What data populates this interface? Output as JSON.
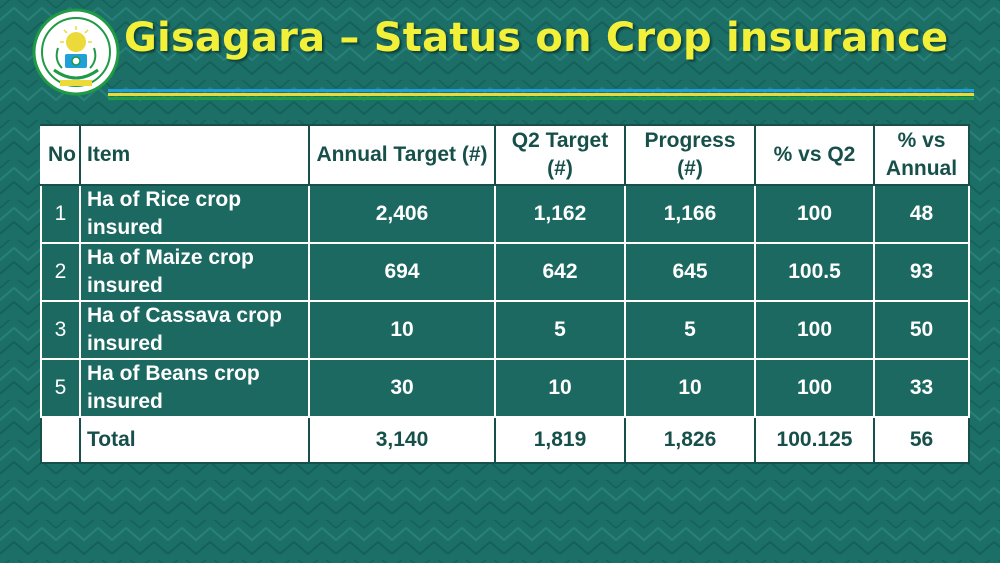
{
  "title": "Gisagara – Status on Crop insurance",
  "emblem": {
    "top_text": "REPUBULIKA Y'U RWANDA",
    "bottom_text": "UBUMWE • UMURIMO • GUKUNDA IGIHUGU"
  },
  "colors": {
    "background": "#1c6f67",
    "title": "#f3f03a",
    "header_text": "#17504a",
    "stripe_blue": "#1fa0da",
    "stripe_yellow": "#ecd93a",
    "stripe_green": "#1f9a45"
  },
  "table": {
    "headers": [
      "No",
      "Item",
      "Annual Target (#)",
      "Q2 Target (#)",
      "Progress (#)",
      "% vs Q2",
      "% vs Annual"
    ],
    "rows": [
      {
        "no": "1",
        "item": "Ha of Rice crop insured",
        "annual_target": "2,406",
        "q2_target": "1,162",
        "progress": "1,166",
        "pct_q2": "100",
        "pct_annual": "48"
      },
      {
        "no": "2",
        "item": "Ha of Maize crop insured",
        "annual_target": "694",
        "q2_target": "642",
        "progress": "645",
        "pct_q2": "100.5",
        "pct_annual": "93"
      },
      {
        "no": "3",
        "item": "Ha of Cassava crop insured",
        "annual_target": "10",
        "q2_target": "5",
        "progress": "5",
        "pct_q2": "100",
        "pct_annual": "50"
      },
      {
        "no": "5",
        "item": "Ha of Beans crop insured",
        "annual_target": "30",
        "q2_target": "10",
        "progress": "10",
        "pct_q2": "100",
        "pct_annual": "33"
      }
    ],
    "total": {
      "no": "",
      "item": "Total",
      "annual_target": "3,140",
      "q2_target": "1,819",
      "progress": "1,826",
      "pct_q2": "100.125",
      "pct_annual": "56"
    }
  }
}
